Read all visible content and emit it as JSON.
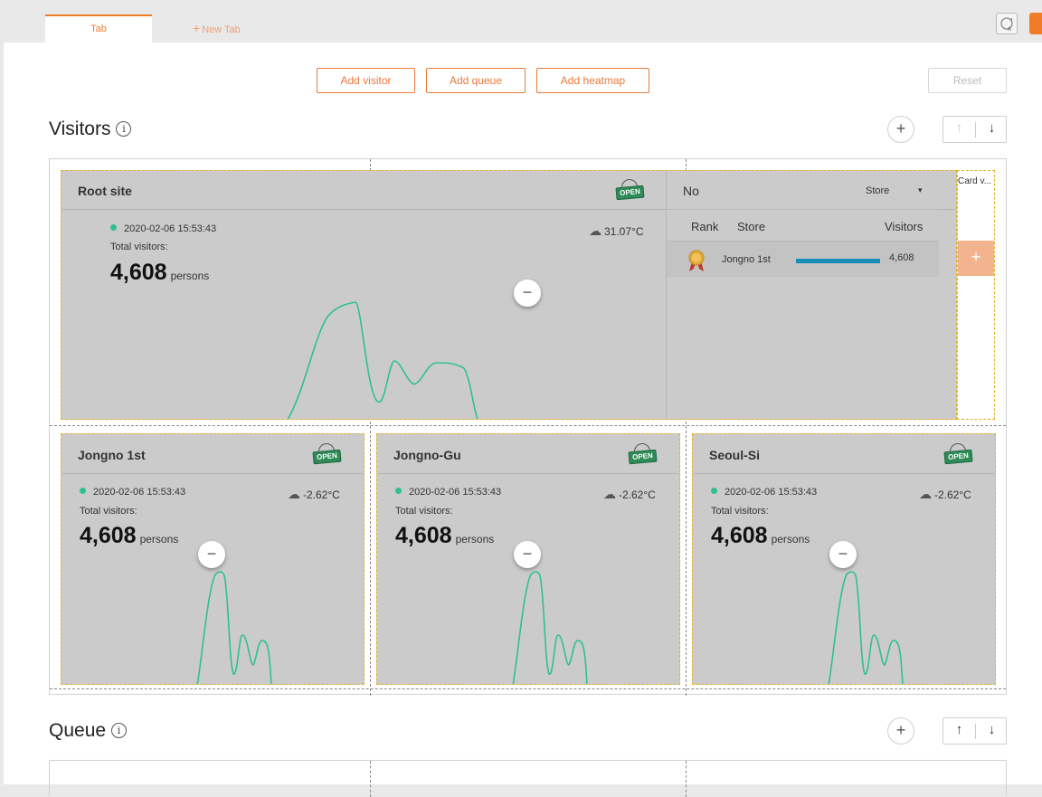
{
  "tabs": {
    "active": "Tab",
    "new_tab": "New Tab"
  },
  "toolbar": {
    "add_visitor": "Add visitor",
    "add_queue": "Add queue",
    "add_heatmap": "Add heatmap",
    "reset": "Reset"
  },
  "visitors": {
    "title": "Visitors",
    "info": "i",
    "add": "+",
    "up": "↑",
    "down": "↓"
  },
  "root_card": {
    "title": "Root site",
    "open_sign": "OPEN",
    "datetime": "2020-02-06   15:53:43",
    "total_label": "Total visitors:",
    "count": "4,608",
    "unit": "persons",
    "weather": "31.07°C",
    "collapse": "−"
  },
  "rank": {
    "sort_label": "No",
    "filter": "Store",
    "filter_caret": "▾",
    "col_rank": "Rank",
    "col_store": "Store",
    "col_visitors": "Visitors",
    "rows": [
      {
        "store": "Jongno 1st",
        "visitors": "4,608",
        "share": 1.0
      }
    ],
    "side_header": "Card v...",
    "side_plus": "+"
  },
  "cards": [
    {
      "title": "Jongno 1st",
      "open_sign": "OPEN",
      "datetime": "2020-02-06   15:53:43",
      "total_label": "Total visitors:",
      "count": "4,608",
      "unit": "persons",
      "weather": "-2.62°C",
      "collapse": "−"
    },
    {
      "title": "Jongno-Gu",
      "open_sign": "OPEN",
      "datetime": "2020-02-06   15:53:43",
      "total_label": "Total visitors:",
      "count": "4,608",
      "unit": "persons",
      "weather": "-2.62°C",
      "collapse": "−"
    },
    {
      "title": "Seoul-Si",
      "open_sign": "OPEN",
      "datetime": "2020-02-06   15:53:43",
      "total_label": "Total visitors:",
      "count": "4,608",
      "unit": "persons",
      "weather": "-2.62°C",
      "collapse": "−"
    }
  ],
  "queue": {
    "title": "Queue",
    "info": "i",
    "add": "+",
    "up": "↑",
    "down": "↓"
  },
  "colors": {
    "accent": "#f07c27",
    "line": "#2fbf95",
    "card_bg": "#cbcbcb",
    "bar": "#1a8cb8"
  },
  "icons": {
    "tool1": "refresh-a-icon",
    "tool2": "layout-icon",
    "weather": "cloud-icon",
    "medal": "gold-medal-icon"
  }
}
